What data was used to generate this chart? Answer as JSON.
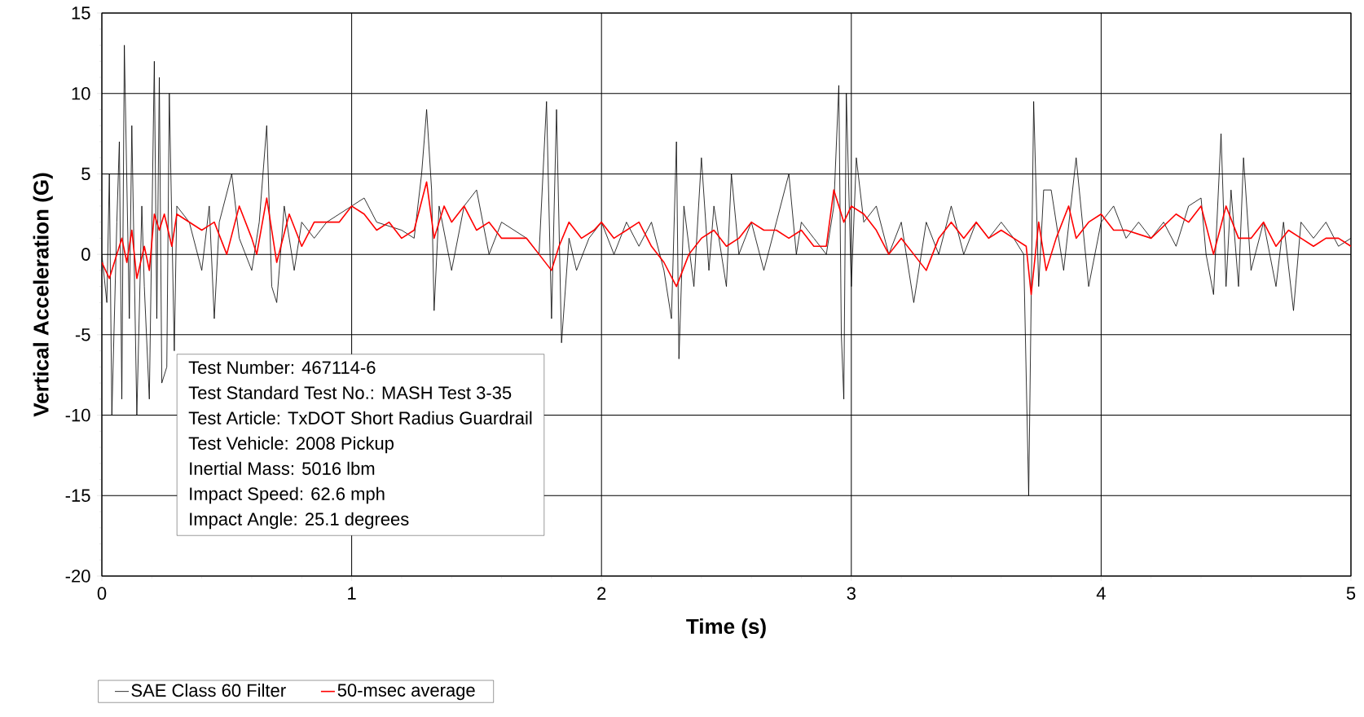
{
  "chart_data": {
    "type": "line",
    "xlabel": "Time (s)",
    "ylabel": "Vertical Acceleration (G)",
    "xlim": [
      0,
      5
    ],
    "ylim": [
      -20,
      15
    ],
    "xticks": [
      0,
      1,
      2,
      3,
      4,
      5
    ],
    "yticks": [
      -20,
      -15,
      -10,
      -5,
      0,
      5,
      10,
      15
    ],
    "grid": true,
    "legend": "bottom left",
    "marker": "none",
    "line_style": "solid",
    "annotations": [
      "Test Number: 467114-6",
      "Test Standard Test No.: MASH Test 3-35",
      "Test Article: TxDOT Short Radius Guardrail",
      "Test Vehicle: 2008 Pickup",
      "Inertial Mass: 5016 lbm",
      "Impact Speed: 62.6 mph",
      "Impact Angle: 25.1 degrees"
    ],
    "series": [
      {
        "name": "SAE Class 60 Filter",
        "color": "#000000",
        "x": [
          0,
          0.02,
          0.03,
          0.04,
          0.06,
          0.07,
          0.08,
          0.09,
          0.11,
          0.12,
          0.14,
          0.16,
          0.17,
          0.19,
          0.21,
          0.22,
          0.23,
          0.24,
          0.26,
          0.27,
          0.29,
          0.3,
          0.35,
          0.4,
          0.43,
          0.45,
          0.47,
          0.52,
          0.55,
          0.6,
          0.63,
          0.66,
          0.68,
          0.7,
          0.73,
          0.77,
          0.8,
          0.85,
          0.9,
          1.0,
          1.05,
          1.1,
          1.2,
          1.25,
          1.28,
          1.3,
          1.32,
          1.33,
          1.35,
          1.4,
          1.45,
          1.5,
          1.55,
          1.6,
          1.7,
          1.75,
          1.78,
          1.8,
          1.82,
          1.84,
          1.87,
          1.9,
          1.95,
          2.0,
          2.05,
          2.1,
          2.15,
          2.2,
          2.25,
          2.28,
          2.3,
          2.31,
          2.33,
          2.37,
          2.4,
          2.43,
          2.45,
          2.5,
          2.52,
          2.55,
          2.6,
          2.65,
          2.7,
          2.75,
          2.78,
          2.8,
          2.85,
          2.9,
          2.93,
          2.95,
          2.96,
          2.97,
          2.98,
          3.0,
          3.02,
          3.05,
          3.1,
          3.15,
          3.2,
          3.25,
          3.3,
          3.35,
          3.4,
          3.45,
          3.5,
          3.55,
          3.6,
          3.65,
          3.69,
          3.71,
          3.73,
          3.75,
          3.77,
          3.8,
          3.85,
          3.9,
          3.95,
          4.0,
          4.05,
          4.1,
          4.15,
          4.2,
          4.25,
          4.3,
          4.35,
          4.4,
          4.42,
          4.45,
          4.48,
          4.5,
          4.52,
          4.55,
          4.57,
          4.6,
          4.65,
          4.7,
          4.73,
          4.77,
          4.8,
          4.85,
          4.9,
          4.95,
          5.0
        ],
        "values": [
          0,
          -3,
          5,
          -10,
          2,
          7,
          -9,
          13,
          -4,
          8,
          -10,
          3,
          -2,
          -9,
          12,
          -4,
          11,
          -8,
          -7,
          10,
          -6,
          3,
          2,
          -1,
          3,
          -4,
          2,
          5,
          1,
          -1,
          2,
          8,
          -2,
          -3,
          3,
          -1,
          2,
          1,
          2,
          3,
          3.5,
          2,
          1.5,
          1,
          5,
          9,
          4,
          -3.5,
          3,
          -1,
          3,
          4,
          0,
          2,
          1,
          0,
          9.5,
          -4,
          9,
          -5.5,
          1,
          -1,
          1,
          2,
          0,
          2,
          0.5,
          2,
          -1,
          -4,
          7,
          -6.5,
          3,
          -2,
          6,
          -1,
          3,
          -2,
          5,
          0,
          2,
          -1,
          2,
          5,
          0,
          2,
          1,
          0,
          3,
          10.5,
          -5,
          -9,
          10,
          -2,
          6,
          2,
          3,
          0,
          2,
          -3,
          2,
          0,
          3,
          0,
          2,
          1,
          2,
          1,
          0,
          -15,
          9.5,
          -2,
          4,
          4,
          -1,
          6,
          -2,
          2,
          3,
          1,
          2,
          1,
          2,
          0.5,
          3,
          3.5,
          0,
          -2.5,
          7.5,
          -2,
          4,
          -2,
          6,
          -1,
          2,
          -2,
          2,
          -3.5,
          2,
          1,
          2,
          0.5,
          1
        ]
      },
      {
        "name": "50-msec average",
        "color": "#ff0000",
        "x": [
          0,
          0.03,
          0.05,
          0.08,
          0.1,
          0.12,
          0.14,
          0.17,
          0.19,
          0.21,
          0.23,
          0.25,
          0.28,
          0.3,
          0.35,
          0.4,
          0.45,
          0.5,
          0.55,
          0.6,
          0.62,
          0.66,
          0.7,
          0.75,
          0.8,
          0.85,
          0.95,
          1.0,
          1.05,
          1.1,
          1.15,
          1.2,
          1.25,
          1.3,
          1.33,
          1.37,
          1.4,
          1.45,
          1.5,
          1.55,
          1.6,
          1.7,
          1.75,
          1.8,
          1.83,
          1.87,
          1.92,
          1.97,
          2.0,
          2.05,
          2.1,
          2.15,
          2.2,
          2.25,
          2.3,
          2.35,
          2.4,
          2.45,
          2.5,
          2.55,
          2.6,
          2.65,
          2.7,
          2.75,
          2.8,
          2.85,
          2.9,
          2.93,
          2.97,
          3.0,
          3.05,
          3.1,
          3.15,
          3.2,
          3.25,
          3.3,
          3.35,
          3.4,
          3.45,
          3.5,
          3.55,
          3.6,
          3.65,
          3.7,
          3.72,
          3.75,
          3.78,
          3.82,
          3.87,
          3.9,
          3.95,
          4.0,
          4.05,
          4.1,
          4.2,
          4.3,
          4.35,
          4.4,
          4.45,
          4.5,
          4.55,
          4.6,
          4.65,
          4.7,
          4.75,
          4.8,
          4.85,
          4.9,
          4.95,
          5.0
        ],
        "values": [
          -0.5,
          -1.5,
          -0.5,
          1,
          -0.5,
          1.5,
          -1.5,
          0.5,
          -1,
          2.5,
          1.5,
          2.5,
          0.5,
          2.5,
          2,
          1.5,
          2,
          0,
          3,
          1,
          0,
          3.5,
          -0.5,
          2.5,
          0.5,
          2,
          2,
          3,
          2.5,
          1.5,
          2,
          1,
          1.5,
          4.5,
          1,
          3,
          2,
          3,
          1.5,
          2,
          1,
          1,
          0,
          -1,
          0.5,
          2,
          1,
          1.5,
          2,
          1,
          1.5,
          2,
          0.5,
          -0.5,
          -2,
          0,
          1,
          1.5,
          0.5,
          1,
          2,
          1.5,
          1.5,
          1,
          1.5,
          0.5,
          0.5,
          4,
          2,
          3,
          2.5,
          1.5,
          0,
          1,
          0,
          -1,
          1,
          2,
          1,
          2,
          1,
          1.5,
          1,
          0.5,
          -2.5,
          2,
          -1,
          1,
          3,
          1,
          2,
          2.5,
          1.5,
          1.5,
          1,
          2.5,
          2,
          3,
          0,
          3,
          1,
          1,
          2,
          0.5,
          1.5,
          1,
          0.5,
          1,
          1,
          0.5
        ]
      }
    ]
  }
}
